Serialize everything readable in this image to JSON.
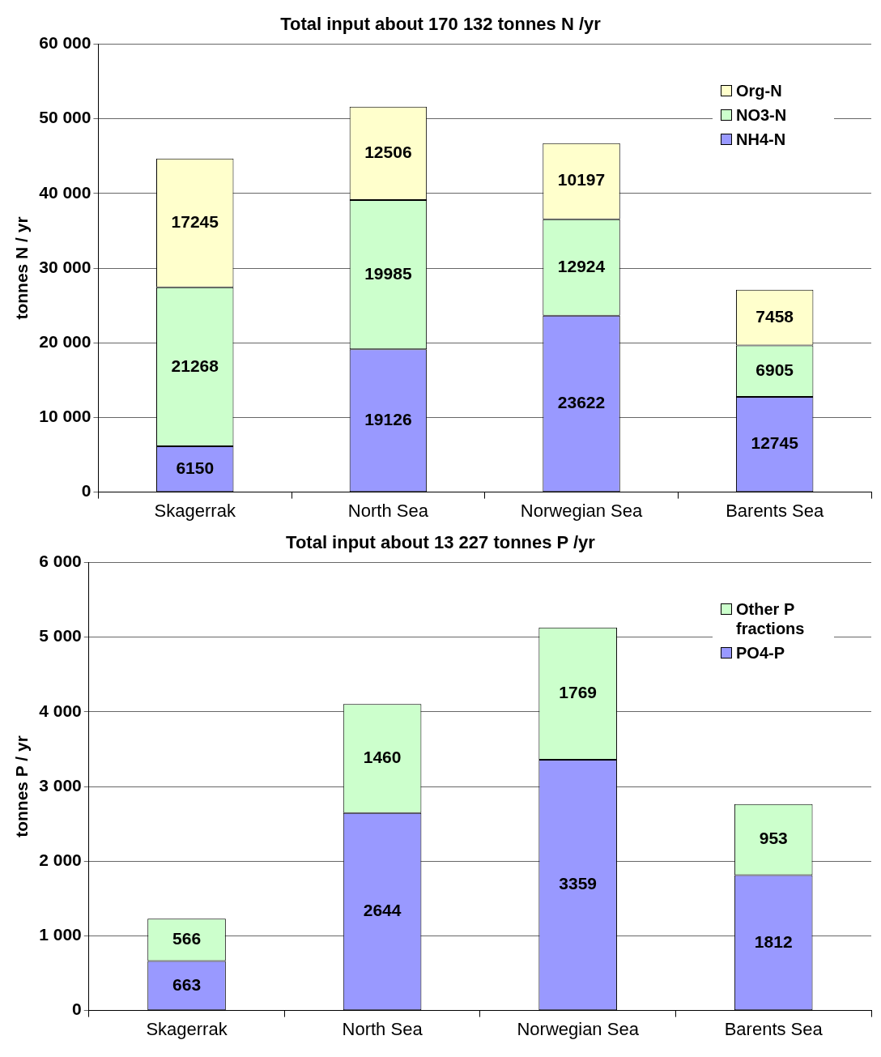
{
  "chart_data": [
    {
      "type": "bar",
      "title": "Total input about 170 132 tonnes N /yr",
      "ylabel": "tonnes N / yr",
      "categories": [
        "Skagerrak",
        "North Sea",
        "Norwegian Sea",
        "Barents Sea"
      ],
      "series": [
        {
          "name": "NH4-N",
          "color": "#9999ff",
          "values": [
            6150,
            19126,
            23622,
            12745
          ]
        },
        {
          "name": "NO3-N",
          "color": "#ccffcc",
          "values": [
            21268,
            19985,
            12924,
            6905
          ]
        },
        {
          "name": "Org-N",
          "color": "#ffffcc",
          "values": [
            17245,
            12506,
            10197,
            7458
          ]
        }
      ],
      "stacked": true,
      "ylim": [
        0,
        60000
      ],
      "yticks": [
        {
          "value": 0,
          "label": "0"
        },
        {
          "value": 10000,
          "label": "10 000"
        },
        {
          "value": 20000,
          "label": "20 000"
        },
        {
          "value": 30000,
          "label": "30 000"
        },
        {
          "value": 40000,
          "label": "40 000"
        },
        {
          "value": 50000,
          "label": "50 000"
        },
        {
          "value": 60000,
          "label": "60 000"
        }
      ],
      "grid": "y",
      "legend": "top right",
      "data_labels": true
    },
    {
      "type": "bar",
      "title": "Total input about 13 227 tonnes P /yr",
      "ylabel": "tonnes P / yr",
      "categories": [
        "Skagerrak",
        "North Sea",
        "Norwegian Sea",
        "Barents Sea"
      ],
      "series": [
        {
          "name": "PO4-P",
          "color": "#9999ff",
          "values": [
            663,
            2644,
            3359,
            1812
          ]
        },
        {
          "name": "Other P fractions",
          "color": "#ccffcc",
          "values": [
            566,
            1460,
            1769,
            953
          ]
        }
      ],
      "stacked": true,
      "ylim": [
        0,
        6000
      ],
      "yticks": [
        {
          "value": 0,
          "label": "0"
        },
        {
          "value": 1000,
          "label": "1 000"
        },
        {
          "value": 2000,
          "label": "2 000"
        },
        {
          "value": 3000,
          "label": "3 000"
        },
        {
          "value": 4000,
          "label": "4 000"
        },
        {
          "value": 5000,
          "label": "5 000"
        },
        {
          "value": 6000,
          "label": "6 000"
        }
      ],
      "grid": "y",
      "legend": "top right",
      "data_labels": true
    }
  ]
}
